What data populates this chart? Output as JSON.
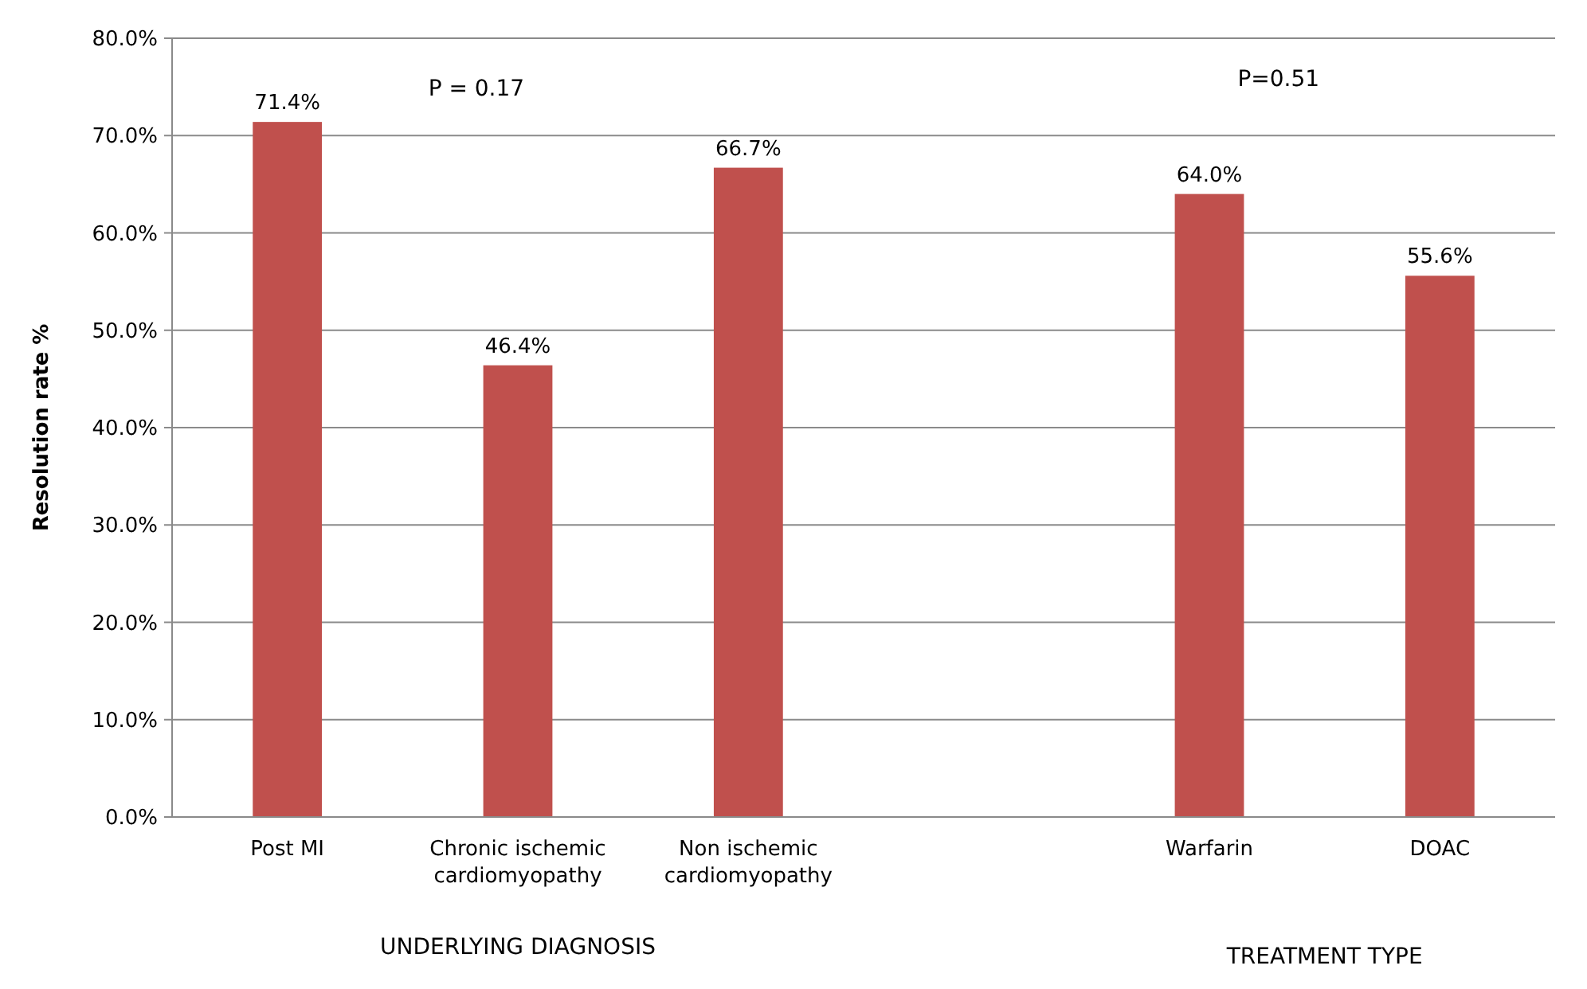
{
  "chart_data": {
    "type": "bar",
    "ylabel": "Resolution rate %",
    "categories": [
      "Post MI",
      "Chronic ischemic cardiomyopathy",
      "Non ischemic cardiomyopathy",
      null,
      "Warfarin",
      "DOAC"
    ],
    "values": [
      71.4,
      46.4,
      66.7,
      null,
      64.0,
      55.6
    ],
    "value_labels": [
      "71.4%",
      "46.4%",
      "66.7%",
      null,
      "64.0%",
      "55.6%"
    ],
    "color": "#c0504d",
    "ylim": [
      0,
      80
    ],
    "yticks": [
      {
        "value": 0,
        "label": "0.0%"
      },
      {
        "value": 10,
        "label": "10.0%"
      },
      {
        "value": 20,
        "label": "20.0%"
      },
      {
        "value": 30,
        "label": "30.0%"
      },
      {
        "value": 40,
        "label": "40.0%"
      },
      {
        "value": 50,
        "label": "50.0%"
      },
      {
        "value": 60,
        "label": "60.0%"
      },
      {
        "value": 70,
        "label": "70.0%"
      },
      {
        "value": 80,
        "label": "80.0%"
      }
    ],
    "grid": "y",
    "annotations": [
      "P = 0.17",
      "P=0.51",
      "UNDERLYING DIAGNOSIS",
      "TREATMENT TYPE"
    ]
  }
}
